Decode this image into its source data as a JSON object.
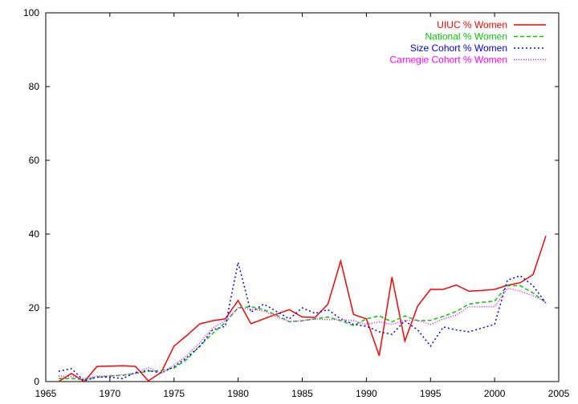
{
  "chart_data": {
    "type": "line",
    "title": "",
    "xlabel": "",
    "ylabel": "",
    "xlim": [
      1965,
      2005
    ],
    "ylim": [
      0,
      100
    ],
    "xticks": [
      1965,
      1970,
      1975,
      1980,
      1985,
      1990,
      1995,
      2000,
      2005
    ],
    "yticks": [
      0,
      20,
      40,
      60,
      80,
      100
    ],
    "grid": false,
    "legend_position": "top-right",
    "series": [
      {
        "name": "UIUC % Women",
        "color": "#ff0000",
        "dash": "solid",
        "points": [
          [
            1966,
            0
          ],
          [
            1967,
            2.2
          ],
          [
            1968,
            0
          ],
          [
            1969,
            4.1
          ],
          [
            1970,
            4.2
          ],
          [
            1971,
            4.3
          ],
          [
            1972,
            4.1
          ],
          [
            1973,
            0.2
          ],
          [
            1974,
            2.5
          ],
          [
            1975,
            9.6
          ],
          [
            1976,
            12.5
          ],
          [
            1977,
            15.6
          ],
          [
            1978,
            16.5
          ],
          [
            1979,
            17
          ],
          [
            1980,
            22
          ],
          [
            1981,
            15.7
          ],
          [
            1982,
            17
          ],
          [
            1983,
            18.3
          ],
          [
            1984,
            19.5
          ],
          [
            1985,
            17.5
          ],
          [
            1986,
            17.4
          ],
          [
            1987,
            21
          ],
          [
            1988,
            32.7
          ],
          [
            1989,
            18.2
          ],
          [
            1990,
            17
          ],
          [
            1991,
            7
          ],
          [
            1992,
            28.3
          ],
          [
            1993,
            11
          ],
          [
            1994,
            20.5
          ],
          [
            1995,
            25
          ],
          [
            1996,
            25
          ],
          [
            1997,
            26.2
          ],
          [
            1998,
            24.5
          ],
          [
            1999,
            24.7
          ],
          [
            2000,
            25
          ],
          [
            2001,
            26.1
          ],
          [
            2002,
            26.8
          ],
          [
            2003,
            29
          ],
          [
            2004,
            39.5
          ]
        ]
      },
      {
        "name": "National % Women",
        "color": "#00cc00",
        "dash": "dashed",
        "points": [
          [
            1966,
            0.8
          ],
          [
            1967,
            0.8
          ],
          [
            1968,
            0.5
          ],
          [
            1969,
            1.2
          ],
          [
            1970,
            1.5
          ],
          [
            1971,
            1.7
          ],
          [
            1972,
            2.2
          ],
          [
            1973,
            2.8
          ],
          [
            1974,
            3
          ],
          [
            1975,
            3.7
          ],
          [
            1976,
            6
          ],
          [
            1977,
            9.6
          ],
          [
            1978,
            13
          ],
          [
            1979,
            16
          ],
          [
            1980,
            20
          ],
          [
            1981,
            20.3
          ],
          [
            1982,
            19.5
          ],
          [
            1983,
            18
          ],
          [
            1984,
            16.2
          ],
          [
            1985,
            16.5
          ],
          [
            1986,
            17
          ],
          [
            1987,
            17.5
          ],
          [
            1988,
            16.5
          ],
          [
            1989,
            15.2
          ],
          [
            1990,
            17
          ],
          [
            1991,
            17.8
          ],
          [
            1992,
            16.2
          ],
          [
            1993,
            17.8
          ],
          [
            1994,
            16.5
          ],
          [
            1995,
            16.6
          ],
          [
            1996,
            17.7
          ],
          [
            1997,
            19
          ],
          [
            1998,
            21
          ],
          [
            1999,
            21.5
          ],
          [
            2000,
            21.8
          ],
          [
            2001,
            26
          ],
          [
            2002,
            26
          ],
          [
            2003,
            24
          ],
          [
            2004,
            21.5
          ]
        ]
      },
      {
        "name": "Size Cohort % Women",
        "color": "#0000ff",
        "dash": "dotted",
        "points": [
          [
            1966,
            2.8
          ],
          [
            1967,
            3.5
          ],
          [
            1968,
            0.2
          ],
          [
            1969,
            1.2
          ],
          [
            1970,
            1.2
          ],
          [
            1971,
            0.8
          ],
          [
            1972,
            2.5
          ],
          [
            1973,
            3
          ],
          [
            1974,
            2.3
          ],
          [
            1975,
            4
          ],
          [
            1976,
            6.5
          ],
          [
            1977,
            9.5
          ],
          [
            1978,
            14
          ],
          [
            1979,
            15
          ],
          [
            1980,
            32.3
          ],
          [
            1981,
            18.8
          ],
          [
            1982,
            21
          ],
          [
            1983,
            19
          ],
          [
            1984,
            17
          ],
          [
            1985,
            20
          ],
          [
            1986,
            18.5
          ],
          [
            1987,
            19.5
          ],
          [
            1988,
            17
          ],
          [
            1989,
            15.5
          ],
          [
            1990,
            15
          ],
          [
            1991,
            13.5
          ],
          [
            1992,
            12.8
          ],
          [
            1993,
            16.5
          ],
          [
            1994,
            14
          ],
          [
            1995,
            9.6
          ],
          [
            1996,
            14.8
          ],
          [
            1997,
            14
          ],
          [
            1998,
            13.5
          ],
          [
            1999,
            14.5
          ],
          [
            2000,
            15.5
          ],
          [
            2001,
            27.5
          ],
          [
            2002,
            28.7
          ],
          [
            2003,
            26
          ],
          [
            2004,
            21.3
          ]
        ]
      },
      {
        "name": "Carnegie Cohort % Women",
        "color": "#ff00ff",
        "dash": "finedot",
        "points": [
          [
            1966,
            1.5
          ],
          [
            1967,
            1.3
          ],
          [
            1968,
            0.8
          ],
          [
            1969,
            1.5
          ],
          [
            1970,
            1.6
          ],
          [
            1971,
            1.8
          ],
          [
            1972,
            2.3
          ],
          [
            1973,
            3.8
          ],
          [
            1974,
            2.2
          ],
          [
            1975,
            4.5
          ],
          [
            1976,
            7
          ],
          [
            1977,
            10.5
          ],
          [
            1978,
            14.5
          ],
          [
            1979,
            16.5
          ],
          [
            1980,
            20
          ],
          [
            1981,
            19.7
          ],
          [
            1982,
            19.2
          ],
          [
            1983,
            17.5
          ],
          [
            1984,
            16.3
          ],
          [
            1985,
            16.5
          ],
          [
            1986,
            17
          ],
          [
            1987,
            16.8
          ],
          [
            1988,
            16.8
          ],
          [
            1989,
            16.5
          ],
          [
            1990,
            15.5
          ],
          [
            1991,
            16.2
          ],
          [
            1992,
            15.5
          ],
          [
            1993,
            16.6
          ],
          [
            1994,
            16.6
          ],
          [
            1995,
            15.5
          ],
          [
            1996,
            17
          ],
          [
            1997,
            18
          ],
          [
            1998,
            20.3
          ],
          [
            1999,
            20.3
          ],
          [
            2000,
            20.3
          ],
          [
            2001,
            25.3
          ],
          [
            2002,
            24.5
          ],
          [
            2003,
            23.3
          ],
          [
            2004,
            21.5
          ]
        ]
      }
    ]
  }
}
